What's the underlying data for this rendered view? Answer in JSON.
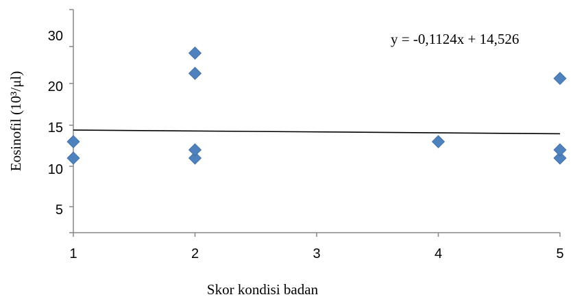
{
  "chart_data": {
    "type": "scatter",
    "xlabel": "Skor kondisi badan",
    "ylabel": "Eosinofil (10³/μl)",
    "x_ticks": [
      1,
      2,
      3,
      4,
      5
    ],
    "y_ticks": [
      5,
      10,
      15,
      20,
      30
    ],
    "xlim": [
      1,
      5
    ],
    "ylim": [
      0,
      30
    ],
    "grid": false,
    "legend": "none",
    "series": [
      {
        "points": [
          {
            "x": 1,
            "y": 11
          },
          {
            "x": 1,
            "y": 13
          },
          {
            "x": 2,
            "y": 11
          },
          {
            "x": 2,
            "y": 12
          },
          {
            "x": 2,
            "y": 22
          },
          {
            "x": 2,
            "y": 26
          },
          {
            "x": 4,
            "y": 13
          },
          {
            "x": 5,
            "y": 11
          },
          {
            "x": 5,
            "y": 12
          },
          {
            "x": 5,
            "y": 21
          }
        ],
        "color": "#4F81BD",
        "marker": "diamond"
      }
    ],
    "trendline": {
      "slope": -0.1124,
      "intercept": 14.526,
      "label": "y = -0,1124x + 14,526",
      "color": "#000000"
    }
  }
}
